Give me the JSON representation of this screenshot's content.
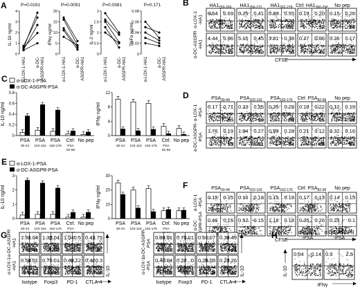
{
  "A": {
    "letter": "A",
    "x_labels": [
      "α-LOX-1-HA1",
      "α-DC-ASGPR-HA1"
    ],
    "panels": [
      {
        "ylabel": "IL-10 ng/ml",
        "p": "P=0.0191",
        "ticks": [
          "0",
          "1",
          "2",
          "3",
          "4"
        ],
        "pairs": [
          [
            0.35,
            1.0
          ],
          [
            0.6,
            1.95
          ],
          [
            0.75,
            3.4
          ],
          [
            0.4,
            2.7
          ],
          [
            0.55,
            3.85
          ]
        ]
      },
      {
        "ylabel": "IFNγ ng/ml",
        "p": "P=0.0091",
        "ticks": [
          "0",
          "5",
          "10",
          "15",
          "20"
        ],
        "pairs": [
          [
            17,
            6
          ],
          [
            16,
            4
          ],
          [
            12,
            3
          ],
          [
            8,
            4
          ],
          [
            11,
            2
          ]
        ]
      },
      {
        "ylabel": "IL-2 ng/ml",
        "p": "P=0.0381",
        "ticks": [
          "0",
          "0.5",
          "1",
          "1.5",
          "2"
        ],
        "pairs": [
          [
            1.9,
            1.0
          ],
          [
            1.6,
            0.9
          ],
          [
            1.5,
            0.55
          ],
          [
            1.25,
            0.3
          ],
          [
            1.0,
            0.5
          ]
        ]
      },
      {
        "ylabel": "TNFα ng/ml",
        "p": "P=0.171",
        "ticks": [
          "0",
          "0.02",
          "0.04",
          "0.06",
          "0.08"
        ],
        "pairs": [
          [
            0.06,
            0.03
          ],
          [
            0.05,
            0.04
          ],
          [
            0.04,
            0.025
          ],
          [
            0.03,
            0.02
          ],
          [
            0.02,
            0.015
          ]
        ]
      }
    ]
  },
  "B": {
    "letter": "B",
    "cols": [
      "HA1",
      "HA1",
      "HA1",
      "Ctrl: HA1",
      "No pep"
    ],
    "col_subs": [
      "250-266",
      "256-272",
      "262-278",
      "280-296",
      ""
    ],
    "rows": [
      "α-LOX-1\n-HA1",
      "α-DC-ASGPR\n-HA1"
    ],
    "axis_x": "CFSE",
    "axis_y": "IL-10",
    "quads": [
      [
        [
          "0.54",
          "0.69",
          "51"
        ],
        [
          "0.25",
          "0.41",
          "54"
        ],
        [
          "0.89",
          "0.55",
          "51"
        ],
        [
          "0.19",
          "0.20",
          "57"
        ],
        [
          "0.15",
          "0.20",
          "56"
        ]
      ],
      [
        [
          "4.44",
          "0.66",
          "49"
        ],
        [
          "5.15",
          "0.45",
          "58"
        ],
        [
          "3.81",
          "0.38",
          "56"
        ],
        [
          "0.27",
          "0.06",
          "49"
        ],
        [
          "0.26",
          "0.17",
          "53"
        ]
      ]
    ]
  },
  "C": {
    "letter": "C",
    "legend": [
      "α-LOX-1-PSA",
      "α-DC-ASGPR-PSA"
    ],
    "ylabel_left": "IL-10  ng/ml",
    "ylabel_right": "IFNγ ng/ml",
    "yticks_left": [
      "0",
      "0.2",
      "0.4",
      "0.6",
      "0.8"
    ],
    "yticks_right": [
      "0",
      "4",
      "8",
      "12"
    ],
    "categories": [
      "PSA",
      "PSA",
      "PSA",
      "Ctrl:",
      "No pep"
    ],
    "cat_subs": [
      "30-44",
      "102-116",
      "162-176",
      "PSA",
      ""
    ],
    "cat_subs2": [
      "",
      "",
      "",
      "82-96",
      ""
    ],
    "il10_lox": [
      0.06,
      0.1,
      0.08,
      0.03,
      0.02
    ],
    "il10_dc": [
      0.37,
      0.58,
      0.48,
      0.09,
      0.07
    ],
    "ifn_lox": [
      10.2,
      9.4,
      9.0,
      2.6,
      2.0
    ],
    "ifn_dc": [
      1.9,
      1.4,
      1.8,
      0.6,
      0.4
    ]
  },
  "D": {
    "letter": "D",
    "cols": [
      "PSA",
      "PSA",
      "PSA",
      "Ctrl: PSA",
      "No pep"
    ],
    "col_subs": [
      "30-44",
      "102-116",
      "162-176",
      "82-96",
      ""
    ],
    "rows": [
      "α-LOX-1\n-PSA",
      "α-DC-ASGPR-\nPSA"
    ],
    "axis_y": "IL-10",
    "quads": [
      [
        [
          "0.17",
          "0.71",
          "56"
        ],
        [
          "0.23",
          "0.25",
          "63"
        ],
        [
          "0.25",
          "0.28",
          "61"
        ],
        [
          "0.19",
          "0.22",
          "56"
        ],
        [
          "0.12",
          "0.19",
          "49"
        ]
      ],
      [
        [
          "1.76",
          "0.19",
          "55"
        ],
        [
          "1.84",
          "0.27",
          "51"
        ],
        [
          "0.99",
          "0.28",
          "54"
        ],
        [
          "0.21",
          "0.12",
          "56"
        ],
        [
          "0.32",
          "0.16",
          "58"
        ]
      ]
    ]
  },
  "E": {
    "letter": "E",
    "legend": [
      "α-LOX-1-PSA",
      "α-DC-ASGPR-PSA"
    ],
    "ylabel_left": "IL-10  ng/ml",
    "ylabel_right": "IFNγ  ng/ml",
    "yticks_left": [
      "0",
      "1",
      "2",
      "3"
    ],
    "yticks_right": [
      "0",
      "10",
      "20",
      "30"
    ],
    "categories": [
      "PSA",
      "PSA",
      "PSA",
      "Ctrl:",
      "No pep"
    ],
    "cat_subs": [
      "30-44",
      "102-116",
      "162-176",
      "PSA",
      ""
    ],
    "cat_subs2": [
      "",
      "",
      "",
      "82-96",
      ""
    ],
    "il10_lox": [
      0.25,
      0.3,
      0.3,
      0.1,
      0.1
    ],
    "il10_dc": [
      2.7,
      2.5,
      2.15,
      0.45,
      0.45
    ],
    "ifn_lox": [
      25,
      20,
      21,
      5.5,
      5.5
    ],
    "ifn_dc": [
      17,
      7.5,
      5,
      6.5,
      6
    ]
  },
  "F": {
    "letter": "F",
    "cols": [
      "PSA",
      "PSA",
      "PSA",
      "Ctrl: PSA",
      "No pep"
    ],
    "col_subs": [
      "30-44",
      "102-116",
      "162-176",
      "82-96",
      ""
    ],
    "rows": [
      "α-LOX-1\n-PSA",
      "α-DC\n-ASGPR-PSA"
    ],
    "axis_x": "CFSE",
    "axis_y": "IL-10",
    "quads": [
      [
        [
          "0.15",
          "0.15",
          "23"
        ],
        [
          "0.16",
          "0.18",
          "20"
        ],
        [
          "0.15",
          "0.18",
          "19"
        ],
        [
          "0.17",
          "0.13",
          "20"
        ],
        [
          "0.14",
          "0.15",
          "15"
        ]
      ],
      [
        [
          "0.46",
          "0.15",
          "18"
        ],
        [
          "0.52",
          "0.15",
          "15"
        ],
        [
          "1.18",
          "0.18",
          "19"
        ],
        [
          "0.35",
          "0.26",
          "22"
        ],
        [
          "0.23",
          "0.1",
          "18"
        ]
      ]
    ]
  },
  "G": {
    "letter": "G",
    "axis_x": [
      "Isotype",
      "Foxp3",
      "PD-1",
      "CTLA-4"
    ],
    "axis_y": "IL-10",
    "rows_left": [
      "α-DC-ASGPR\n-HA1",
      "α-LOX-1\n-HA1"
    ],
    "rows_right": [
      "α-DC-ASGPR-\nPSA",
      "α-LOX-1\n-PSA"
    ],
    "left_quads": [
      [
        [
          "1.91",
          "0.04",
          "0.41"
        ],
        [
          "1.35",
          "0.04",
          "1.68"
        ],
        [
          "1.04",
          "0.5",
          "5.8"
        ],
        [
          "0.43",
          "1.75",
          "31"
        ]
      ],
      [
        [
          "0.54",
          "0.01",
          "0.15"
        ],
        [
          "0.7",
          "0.01",
          "0.49"
        ],
        [
          "0.48",
          "0.12",
          "7.5"
        ],
        [
          "0.42",
          "0.3",
          "40"
        ]
      ]
    ],
    "right_quads": [
      [
        [
          "0.83",
          "0.01",
          "0.8"
        ],
        [
          "0.71",
          "0.01",
          "1.8"
        ],
        [
          "0.6",
          "0.07",
          "6"
        ],
        [
          "0.32",
          "0.49",
          "24"
        ]
      ],
      [
        [
          "0.4",
          "0.04",
          "0.6"
        ],
        [
          "0.28",
          "0",
          "0.5"
        ],
        [
          "0.28",
          "0.05",
          "8"
        ],
        [
          "0.27",
          "0.26",
          "22"
        ]
      ]
    ]
  },
  "H": {
    "letter": "H",
    "cols": [
      "α-LOX-1\n-PSA",
      "α-DC-ASGPR\n-PSA"
    ],
    "axis_x": "IFNγ",
    "axis_y": "IL-10",
    "quads": [
      [
        "0.04",
        "0.14"
      ],
      [
        "0.3",
        "2.5"
      ]
    ],
    "bottom": [
      "",
      "22"
    ]
  }
}
